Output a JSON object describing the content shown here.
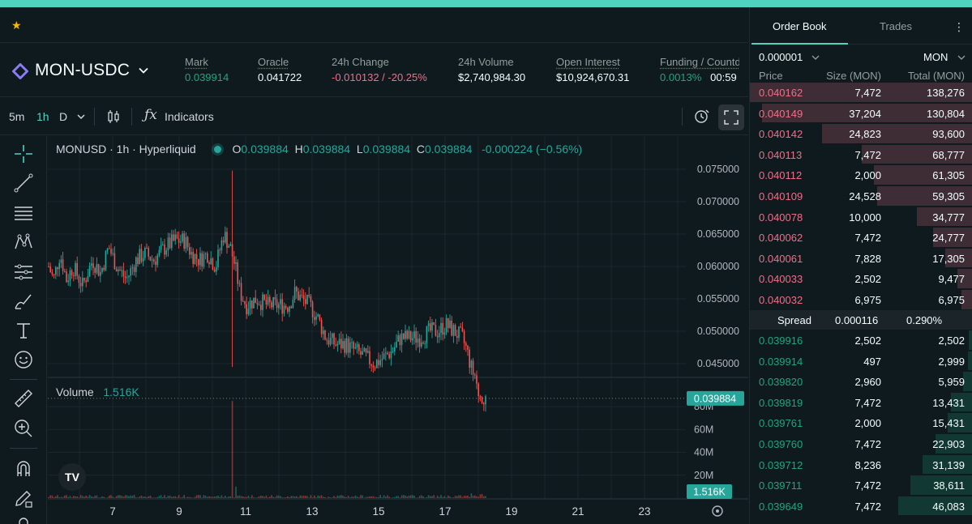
{
  "pair": "MON-USDC",
  "stats": [
    {
      "label": "Mark",
      "value": "0.039914",
      "underline": true,
      "color": "green"
    },
    {
      "label": "Oracle",
      "value": "0.041722",
      "underline": true,
      "color": "white"
    },
    {
      "label": "24h Change",
      "value": "-0.010132 / -20.25%",
      "underline": false,
      "color": "red"
    },
    {
      "label": "24h Volume",
      "value": "$2,740,984.30",
      "underline": false,
      "color": "white"
    },
    {
      "label": "Open Interest",
      "value": "$10,924,670.31",
      "underline": true,
      "color": "white"
    },
    {
      "label": "Funding / Countdown",
      "value": "0.0013%",
      "value2": "00:59",
      "underline": true,
      "color": "green"
    }
  ],
  "toolbar": {
    "intervals": [
      "5m",
      "1h",
      "D"
    ],
    "active_interval": "1h",
    "indicators_label": "Indicators"
  },
  "legend": {
    "title": "MONUSD · 1h · Hyperliquid",
    "o_label": "O",
    "o": "0.039884",
    "h_label": "H",
    "h": "0.039884",
    "l_label": "L",
    "l": "0.039884",
    "c_label": "C",
    "c": "0.039884",
    "change": "-0.000224 (−0.56%)"
  },
  "volume_legend": {
    "label": "Volume",
    "value": "1.516K"
  },
  "price_axis": [
    "0.075000",
    "0.070000",
    "0.065000",
    "0.060000",
    "0.055000",
    "0.050000",
    "0.045000"
  ],
  "last_price_tag": "0.039884",
  "volume_axis": [
    "80M",
    "60M",
    "40M",
    "20M"
  ],
  "volume_tag": "1.516K",
  "date_axis": [
    "7",
    "9",
    "11",
    "13",
    "15",
    "17",
    "19",
    "21",
    "23"
  ],
  "chart_data": {
    "type": "candlestick",
    "interval": "1h",
    "price_axis_range": [
      0.043,
      0.077
    ],
    "last_price": 0.039884,
    "x": [
      "6",
      "7",
      "8",
      "9",
      "10",
      "11",
      "12",
      "13",
      "14",
      "15",
      "16",
      "17",
      "18"
    ],
    "close": [
      0.058,
      0.057,
      0.06,
      0.062,
      0.065,
      0.061,
      0.055,
      0.054,
      0.048,
      0.046,
      0.049,
      0.051,
      0.04
    ],
    "high": [
      0.066,
      0.064,
      0.063,
      0.066,
      0.075,
      0.066,
      0.058,
      0.057,
      0.051,
      0.048,
      0.052,
      0.052,
      0.048
    ],
    "low": [
      0.054,
      0.054,
      0.056,
      0.058,
      0.044,
      0.052,
      0.052,
      0.047,
      0.045,
      0.044,
      0.046,
      0.049,
      0.04
    ],
    "volume_axis_range": [
      0,
      90000000
    ],
    "volume_peak": 85000000,
    "volume_last": "1.516K"
  },
  "orderbook": {
    "tabs": [
      "Order Book",
      "Trades"
    ],
    "tick": "0.000001",
    "unit": "MON",
    "headers": [
      "Price",
      "Size (MON)",
      "Total (MON)"
    ],
    "asks": [
      {
        "price": "0.040162",
        "size": "7,472",
        "total": "138,276",
        "depth": 1.0
      },
      {
        "price": "0.040149",
        "size": "37,204",
        "total": "130,804",
        "depth": 0.946
      },
      {
        "price": "0.040142",
        "size": "24,823",
        "total": "93,600",
        "depth": 0.677
      },
      {
        "price": "0.040113",
        "size": "7,472",
        "total": "68,777",
        "depth": 0.497
      },
      {
        "price": "0.040112",
        "size": "2,000",
        "total": "61,305",
        "depth": 0.443
      },
      {
        "price": "0.040109",
        "size": "24,528",
        "total": "59,305",
        "depth": 0.429
      },
      {
        "price": "0.040078",
        "size": "10,000",
        "total": "34,777",
        "depth": 0.251
      },
      {
        "price": "0.040062",
        "size": "7,472",
        "total": "24,777",
        "depth": 0.179
      },
      {
        "price": "0.040061",
        "size": "7,828",
        "total": "17,305",
        "depth": 0.125
      },
      {
        "price": "0.040033",
        "size": "2,502",
        "total": "9,477",
        "depth": 0.069
      },
      {
        "price": "0.040032",
        "size": "6,975",
        "total": "6,975",
        "depth": 0.05
      }
    ],
    "spread": {
      "label": "Spread",
      "value": "0.000116",
      "pct": "0.290%"
    },
    "bids": [
      {
        "price": "0.039916",
        "size": "2,502",
        "total": "2,502",
        "depth": 0.018
      },
      {
        "price": "0.039914",
        "size": "497",
        "total": "2,999",
        "depth": 0.022
      },
      {
        "price": "0.039820",
        "size": "2,960",
        "total": "5,959",
        "depth": 0.043
      },
      {
        "price": "0.039819",
        "size": "7,472",
        "total": "13,431",
        "depth": 0.097
      },
      {
        "price": "0.039761",
        "size": "2,000",
        "total": "15,431",
        "depth": 0.112
      },
      {
        "price": "0.039760",
        "size": "7,472",
        "total": "22,903",
        "depth": 0.166
      },
      {
        "price": "0.039712",
        "size": "8,236",
        "total": "31,139",
        "depth": 0.225
      },
      {
        "price": "0.039711",
        "size": "7,472",
        "total": "38,611",
        "depth": 0.279
      },
      {
        "price": "0.039649",
        "size": "7,472",
        "total": "46,083",
        "depth": 0.333
      }
    ]
  },
  "colors": {
    "up": "#26a69a",
    "down": "#ef5350",
    "accent": "#50d2c1",
    "ask_text": "#ed7088",
    "bid_text": "#1fa67d"
  }
}
